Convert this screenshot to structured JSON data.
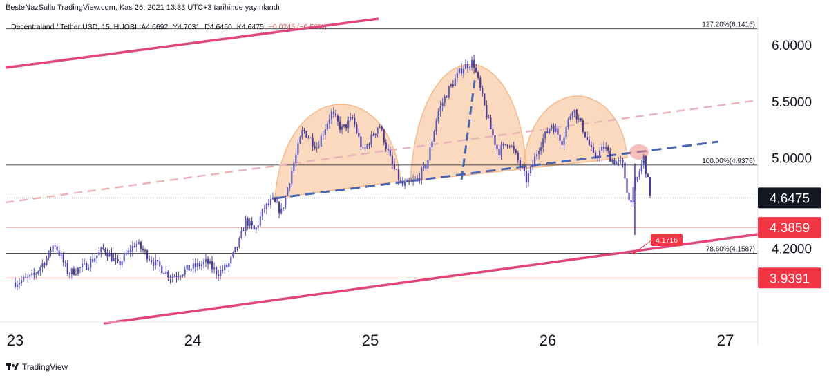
{
  "header": {
    "published_text": "BesteNazSullu TradingView.com, Kas 26, 2021 13:33 UTC+3 tarihinde yayınlandı"
  },
  "legend": {
    "symbol": "Decentraland / Tether USD, 15, HUOBI",
    "open": "A4.6692",
    "high": "Y4.7031",
    "low": "D4.6450",
    "close": "K4.6475",
    "change": "−0.0245 (−0.52%)"
  },
  "footer": {
    "brand": "TradingView"
  },
  "colors": {
    "candle_up": "#5b5bb5",
    "candle_down": "#4b3a9b",
    "channel": "#e0457b",
    "neckline": "#4a66b0",
    "dashed_mid": "#e8b4b8",
    "head_shoulders_fill": "#f7b98a",
    "last_price_bg": "#131722",
    "level_red": "#f23645",
    "red_line": "#f8766d",
    "black_line": "#131722"
  },
  "chart_data": {
    "type": "candlestick",
    "x_tick_labels": [
      "23",
      "24",
      "25",
      "26",
      "27"
    ],
    "y_tick_labels": [
      "6.0000",
      "5.5000",
      "5.0000",
      "4.2000"
    ],
    "y_range": [
      3.55,
      6.25
    ],
    "price_labels": [
      {
        "value": 4.6475,
        "text": "4.6475",
        "style": "last"
      },
      {
        "value": 4.3859,
        "text": "4.3859",
        "style": "red"
      },
      {
        "value": 3.9391,
        "text": "3.9391",
        "style": "red"
      }
    ],
    "horizontal_levels": [
      {
        "value": 6.1416,
        "label": "127.20%(6.1416)",
        "color": "black"
      },
      {
        "value": 4.9376,
        "label": "100.00%(4.9376)",
        "color": "black"
      },
      {
        "value": 4.1587,
        "label": "78.60%(4.1587)",
        "color": "black"
      },
      {
        "value": 4.3859,
        "label": "",
        "color": "red"
      },
      {
        "value": 3.9391,
        "label": "",
        "color": "red"
      },
      {
        "value": 4.6475,
        "label": "",
        "color": "dotted"
      }
    ],
    "callout": {
      "text": "4.1716",
      "value": 4.1716
    },
    "pattern": "head-and-shoulders",
    "price_path": [
      [
        23.0,
        3.9
      ],
      [
        23.1,
        3.95
      ],
      [
        23.18,
        4.12
      ],
      [
        23.22,
        4.25
      ],
      [
        23.3,
        3.98
      ],
      [
        23.4,
        4.05
      ],
      [
        23.5,
        4.2
      ],
      [
        23.58,
        4.05
      ],
      [
        23.68,
        4.25
      ],
      [
        23.78,
        4.08
      ],
      [
        23.88,
        3.95
      ],
      [
        23.98,
        4.02
      ],
      [
        24.08,
        4.08
      ],
      [
        24.14,
        3.98
      ],
      [
        24.2,
        4.05
      ],
      [
        24.26,
        4.25
      ],
      [
        24.3,
        4.45
      ],
      [
        24.35,
        4.35
      ],
      [
        24.4,
        4.55
      ],
      [
        24.45,
        4.62
      ],
      [
        24.5,
        4.52
      ],
      [
        24.56,
        4.9
      ],
      [
        24.62,
        5.25
      ],
      [
        24.7,
        5.1
      ],
      [
        24.78,
        5.4
      ],
      [
        24.84,
        5.25
      ],
      [
        24.9,
        5.35
      ],
      [
        24.96,
        5.05
      ],
      [
        25.05,
        5.3
      ],
      [
        25.12,
        4.95
      ],
      [
        25.18,
        4.75
      ],
      [
        25.26,
        4.8
      ],
      [
        25.32,
        4.95
      ],
      [
        25.38,
        5.4
      ],
      [
        25.44,
        5.6
      ],
      [
        25.52,
        5.8
      ],
      [
        25.58,
        5.85
      ],
      [
        25.66,
        5.35
      ],
      [
        25.72,
        5.05
      ],
      [
        25.78,
        5.15
      ],
      [
        25.84,
        4.95
      ],
      [
        25.88,
        4.8
      ],
      [
        25.95,
        5.1
      ],
      [
        26.02,
        5.3
      ],
      [
        26.08,
        5.15
      ],
      [
        26.14,
        5.45
      ],
      [
        26.2,
        5.25
      ],
      [
        26.26,
        5.0
      ],
      [
        26.32,
        5.1
      ],
      [
        26.36,
        4.98
      ],
      [
        26.42,
        4.95
      ],
      [
        26.46,
        4.6
      ],
      [
        26.5,
        4.8
      ],
      [
        26.54,
        5.0
      ],
      [
        26.58,
        4.65
      ]
    ]
  }
}
